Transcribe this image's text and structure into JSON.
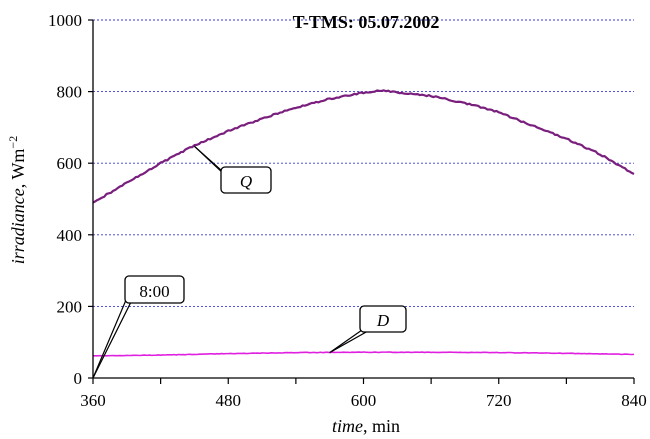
{
  "chart_data": {
    "type": "line",
    "title": "T-TMS: 05.07.2002",
    "xlabel": {
      "italic": "time",
      "rest": ", min"
    },
    "ylabel": {
      "italic": "irradiance",
      "rest": ", Wm",
      "sup": "−2"
    },
    "xlim": [
      360,
      840
    ],
    "ylim": [
      0,
      1000
    ],
    "x_ticks": [
      360,
      480,
      600,
      720,
      840
    ],
    "x_minor_ticks": [
      420,
      540,
      660,
      780
    ],
    "y_ticks": [
      0,
      200,
      400,
      600,
      800,
      1000
    ],
    "grid": {
      "horizontal": true,
      "style": "dashed",
      "color": "#3a3ad8"
    },
    "series": [
      {
        "name": "Q",
        "color": "#7a1f7e",
        "width": 2.2,
        "x": [
          360,
          390,
          420,
          450,
          480,
          510,
          540,
          570,
          600,
          615,
          630,
          660,
          690,
          720,
          750,
          780,
          810,
          840
        ],
        "y": [
          490,
          545,
          600,
          650,
          690,
          725,
          755,
          780,
          797,
          803,
          798,
          788,
          768,
          742,
          705,
          668,
          625,
          570
        ]
      },
      {
        "name": "D",
        "color": "#e020e0",
        "width": 1.6,
        "x": [
          360,
          420,
          480,
          540,
          600,
          660,
          720,
          780,
          840
        ],
        "y": [
          62,
          64,
          68,
          71,
          72,
          72,
          71,
          69,
          66
        ]
      }
    ],
    "annotations": [
      {
        "label": "Q",
        "series": "Q",
        "italic": true
      },
      {
        "label": "D",
        "series": "D",
        "italic": true
      },
      {
        "label": "8:00",
        "italic": false
      }
    ]
  }
}
